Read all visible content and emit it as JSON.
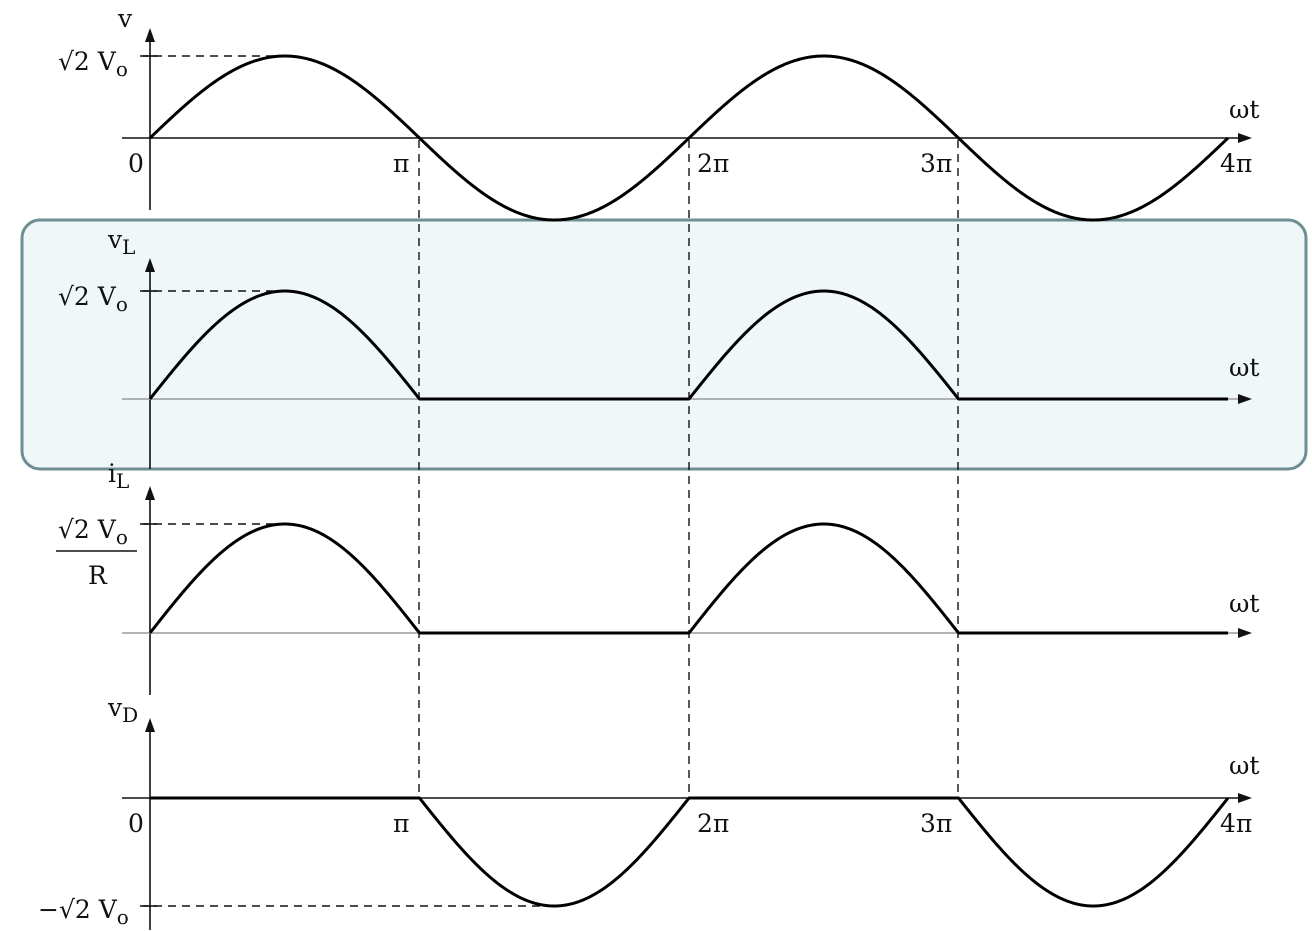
{
  "colors": {
    "waveform": "#000000",
    "axis": "#111111",
    "highlight_fill": "#f0f7f8",
    "highlight_border": "#6f8e93"
  },
  "x_ticks": {
    "zero": "0",
    "pi": "π",
    "two_pi": "2π",
    "three_pi": "3π",
    "four_pi": "4π"
  },
  "x_axis_label": "ωt",
  "panels": {
    "v": {
      "ylabel": "v",
      "peak_label": "√2 V",
      "peak_sub": "o"
    },
    "vL": {
      "ylabel": "v",
      "ylabel_sub": "L",
      "peak_label": "√2 V",
      "peak_sub": "o",
      "highlighted": true
    },
    "iL": {
      "ylabel": "i",
      "ylabel_sub": "L",
      "peak_num": "√2 V",
      "peak_num_sub": "o",
      "peak_den": "R"
    },
    "vD": {
      "ylabel": "v",
      "ylabel_sub": "D",
      "trough_label": "−√2 V",
      "trough_sub": "o"
    }
  },
  "chart_data": [
    {
      "type": "line",
      "panel": "v",
      "x_unit": "rad",
      "x_range": [
        0,
        12.566
      ],
      "y_range": [
        -1.414,
        1.414
      ],
      "series": [
        {
          "function": "sqrt(2)*Vo*sin(x)",
          "domain": [
            0,
            12.566
          ]
        }
      ]
    },
    {
      "type": "line",
      "panel": "vL",
      "x_unit": "rad",
      "x_range": [
        0,
        12.566
      ],
      "y_range": [
        0,
        1.414
      ],
      "series": [
        {
          "function": "max(0, sqrt(2)*Vo*sin(x))",
          "domain": [
            0,
            12.566
          ]
        }
      ]
    },
    {
      "type": "line",
      "panel": "iL",
      "x_unit": "rad",
      "x_range": [
        0,
        12.566
      ],
      "y_range": [
        0,
        1.414
      ],
      "series": [
        {
          "function": "max(0, sqrt(2)*Vo*sin(x))/R",
          "domain": [
            0,
            12.566
          ]
        }
      ]
    },
    {
      "type": "line",
      "panel": "vD",
      "x_unit": "rad",
      "x_range": [
        0,
        12.566
      ],
      "y_range": [
        -1.414,
        0
      ],
      "series": [
        {
          "function": "min(0, sqrt(2)*Vo*sin(x))",
          "domain": [
            0,
            12.566
          ]
        }
      ]
    }
  ]
}
